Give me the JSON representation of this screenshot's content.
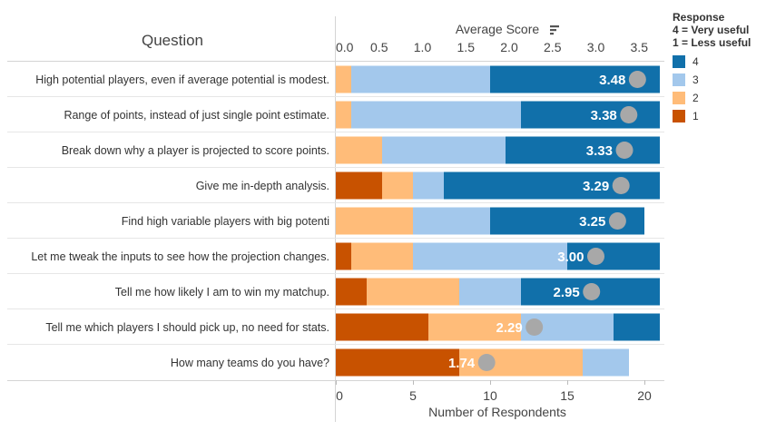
{
  "chart_data": {
    "type": "bar",
    "stacked": true,
    "orientation": "horizontal",
    "row_header": "Question",
    "top_axis_label": "Average Score",
    "top_axis_range": [
      0,
      3.8
    ],
    "top_axis_ticks": [
      "0.0",
      "0.5",
      "1.0",
      "1.5",
      "2.0",
      "2.5",
      "3.0",
      "3.5"
    ],
    "xlabel": "Number of Respondents",
    "xlim": [
      0,
      21
    ],
    "x_ticks": [
      "0",
      "5",
      "10",
      "15",
      "20"
    ],
    "categories": [
      "High potential players, even if average potential is modest.",
      "Range of points, instead of just single point estimate.",
      "Break down why a player is projected to score points.",
      "Give me in-depth analysis.",
      "Find high variable players with big potenti",
      "Let me tweak the inputs to see how the projection changes.",
      "Tell me how likely I am to win my matchup.",
      "Tell me which players I should pick up, no need for stats.",
      "How many teams do you have?"
    ],
    "series": [
      {
        "name": "1",
        "color": "#c85200",
        "values": [
          0,
          0,
          0,
          3,
          0,
          1,
          2,
          6,
          8
        ]
      },
      {
        "name": "2",
        "color": "#ffbc79",
        "values": [
          1,
          1,
          3,
          2,
          5,
          4,
          6,
          6,
          8
        ]
      },
      {
        "name": "3",
        "color": "#a3c8ec",
        "values": [
          9,
          11,
          8,
          2,
          5,
          10,
          4,
          6,
          3
        ]
      },
      {
        "name": "4",
        "color": "#1170aa",
        "values": [
          11,
          9,
          10,
          14,
          10,
          6,
          9,
          3,
          0
        ]
      }
    ],
    "average_scores": [
      3.48,
      3.38,
      3.33,
      3.29,
      3.25,
      3.0,
      2.95,
      2.29,
      1.74
    ],
    "average_labels": [
      "3.48",
      "3.38",
      "3.33",
      "3.29",
      "3.25",
      "3.00",
      "2.95",
      "2.29",
      "1.74"
    ],
    "marker_color": "#a8a8a8",
    "legend": {
      "title_lines": [
        "Response",
        "4 = Very useful",
        "1 = Less useful"
      ],
      "placement": "right",
      "items": [
        {
          "label": "4",
          "color": "#1170aa"
        },
        {
          "label": "3",
          "color": "#a3c8ec"
        },
        {
          "label": "2",
          "color": "#ffbc79"
        },
        {
          "label": "1",
          "color": "#c85200"
        }
      ]
    },
    "sort_icon": "sort-descending-icon"
  }
}
